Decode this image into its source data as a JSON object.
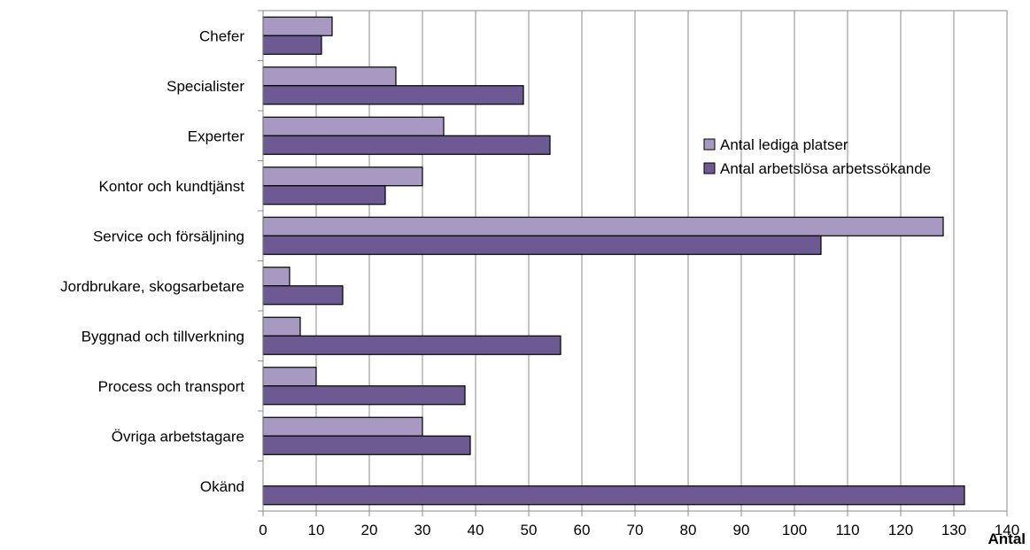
{
  "chart_data": {
    "type": "bar",
    "orientation": "horizontal",
    "categories": [
      "Chefer",
      "Specialister",
      "Experter",
      "Kontor och kundtjänst",
      "Service och försäljning",
      "Jordbrukare, skogsarbetare",
      "Byggnad och tillverkning",
      "Process och transport",
      "Övriga arbetstagare",
      "Okänd"
    ],
    "series": [
      {
        "name": "Antal lediga platser",
        "color": "#a799c1",
        "values": [
          13,
          25,
          34,
          30,
          128,
          5,
          7,
          10,
          30,
          0
        ]
      },
      {
        "name": "Antal arbetslösa arbetssökande",
        "color": "#6d5a93",
        "values": [
          11,
          49,
          54,
          23,
          105,
          15,
          56,
          38,
          39,
          132
        ]
      }
    ],
    "xlim": [
      0,
      140
    ],
    "xticks": [
      "0",
      "10",
      "20",
      "30",
      "40",
      "50",
      "60",
      "70",
      "80",
      "90",
      "100",
      "110",
      "120",
      "130",
      "140"
    ],
    "xlabel": "Antal",
    "ylabel": "",
    "grid": "vertical",
    "legend_position": "right"
  }
}
